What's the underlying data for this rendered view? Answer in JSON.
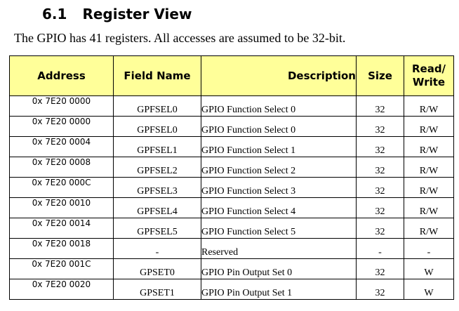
{
  "section": {
    "number": "6.1",
    "title": "Register View"
  },
  "intro": "The GPIO has 41 registers. All accesses are assumed to be 32-bit.",
  "table": {
    "headers": {
      "address": "Address",
      "field": "Field Name",
      "description": "Description",
      "size": "Size",
      "rw_line1": "Read/",
      "rw_line2": "Write"
    },
    "rows": [
      {
        "address": "0x 7E20 0000",
        "field": "GPFSEL0",
        "description": "GPIO Function Select 0",
        "size": "32",
        "rw": "R/W"
      },
      {
        "address": "0x 7E20 0000",
        "field": "GPFSEL0",
        "description": "GPIO Function Select 0",
        "size": "32",
        "rw": "R/W"
      },
      {
        "address": "0x 7E20 0004",
        "field": "GPFSEL1",
        "description": "GPIO Function Select 1",
        "size": "32",
        "rw": "R/W"
      },
      {
        "address": "0x 7E20 0008",
        "field": "GPFSEL2",
        "description": "GPIO Function Select 2",
        "size": "32",
        "rw": "R/W"
      },
      {
        "address": "0x 7E20 000C",
        "field": "GPFSEL3",
        "description": "GPIO Function Select 3",
        "size": "32",
        "rw": "R/W"
      },
      {
        "address": "0x 7E20 0010",
        "field": "GPFSEL4",
        "description": "GPIO Function Select 4",
        "size": "32",
        "rw": "R/W"
      },
      {
        "address": "0x 7E20 0014",
        "field": "GPFSEL5",
        "description": "GPIO Function Select 5",
        "size": "32",
        "rw": "R/W"
      },
      {
        "address": "0x 7E20 0018",
        "field": "-",
        "description": "Reserved",
        "size": "-",
        "rw": "-"
      },
      {
        "address": "0x 7E20 001C",
        "field": "GPSET0",
        "description": "GPIO Pin Output Set 0",
        "size": "32",
        "rw": "W"
      },
      {
        "address": "0x 7E20 0020",
        "field": "GPSET1",
        "description": "GPIO Pin Output Set 1",
        "size": "32",
        "rw": "W"
      }
    ]
  },
  "colors": {
    "header_bg": "#ffff99",
    "border": "#000000",
    "text": "#000000"
  }
}
